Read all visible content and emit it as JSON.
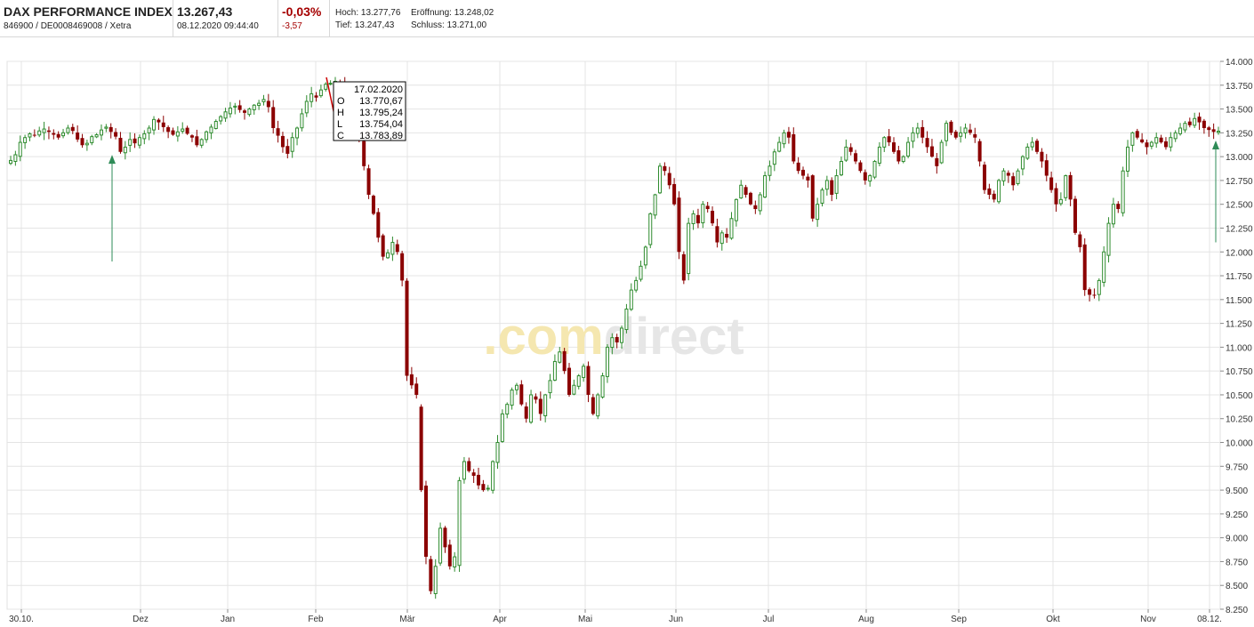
{
  "header": {
    "name": "DAX PERFORMANCE INDEX",
    "identifiers": "846900 / DE0008469008 / Xetra",
    "price": "13.267,43",
    "datetime": "08.12.2020 09:44:40",
    "change_pct": "-0,03%",
    "change_abs": "-3,57",
    "high_label": "Hoch:",
    "high_value": "13.277,76",
    "open_label": "Eröffnung:",
    "open_value": "13.248,02",
    "low_label": "Tief:",
    "low_value": "13.247,43",
    "close_label": "Schluss:",
    "close_value": "13.271,00"
  },
  "watermark": {
    "dot": ".",
    "com": "com",
    "direct": "direct"
  },
  "tooltip": {
    "date": "17.02.2020",
    "rows": [
      {
        "label": "O",
        "value": "13.770,67"
      },
      {
        "label": "H",
        "value": "13.795,24"
      },
      {
        "label": "L",
        "value": "13.754,04"
      },
      {
        "label": "C",
        "value": "13.783,89"
      }
    ]
  },
  "colors": {
    "up": "#2e8b2e",
    "down": "#8b0000",
    "grid": "#e4e4e4",
    "arrow": "#2e8b57"
  },
  "chart_data": {
    "type": "candlestick",
    "title": "DAX PERFORMANCE INDEX",
    "ylim": [
      8250,
      14000
    ],
    "y_ticks": [
      "8.250",
      "8.500",
      "8.750",
      "9.000",
      "9.250",
      "9.500",
      "9.750",
      "10.000",
      "10.250",
      "10.500",
      "10.750",
      "11.000",
      "11.250",
      "11.500",
      "11.750",
      "12.000",
      "12.250",
      "12.500",
      "12.750",
      "13.000",
      "13.250",
      "13.500",
      "13.750",
      "14.000"
    ],
    "x_ticks": [
      "30.10.",
      "Dez",
      "Jan",
      "Feb",
      "Mär",
      "Apr",
      "Mai",
      "Jun",
      "Jul",
      "Aug",
      "Sep",
      "Okt",
      "Nov",
      "08.12."
    ],
    "close": [
      12960,
      13020,
      13150,
      13200,
      13240,
      13225,
      13270,
      13290,
      13260,
      13230,
      13200,
      13250,
      13300,
      13270,
      13180,
      13120,
      13140,
      13210,
      13230,
      13280,
      13310,
      13260,
      13210,
      13050,
      13100,
      13180,
      13140,
      13200,
      13240,
      13300,
      13390,
      13360,
      13310,
      13260,
      13230,
      13260,
      13290,
      13240,
      13200,
      13120,
      13180,
      13260,
      13310,
      13370,
      13420,
      13470,
      13510,
      13530,
      13490,
      13460,
      13500,
      13540,
      13560,
      13600,
      13520,
      13300,
      13220,
      13100,
      13030,
      13200,
      13300,
      13450,
      13580,
      13660,
      13620,
      13700,
      13760,
      13770,
      13790,
      13784,
      13680,
      13610,
      13500,
      13200,
      12900,
      12600,
      12400,
      12150,
      11950,
      11990,
      12100,
      12000,
      11700,
      10700,
      10600,
      10500,
      9500,
      8800,
      8440,
      8700,
      9100,
      8900,
      8700,
      8800,
      9600,
      9800,
      9700,
      9650,
      9550,
      9500,
      9520,
      9800,
      10000,
      10300,
      10400,
      10550,
      10600,
      10400,
      10250,
      10500,
      10450,
      10300,
      10500,
      10650,
      10850,
      10950,
      10750,
      10500,
      10600,
      10700,
      10800,
      10500,
      10300,
      10500,
      10700,
      11000,
      11100,
      11050,
      11200,
      11400,
      11600,
      11700,
      11850,
      12050,
      12400,
      12600,
      12900,
      12850,
      12700,
      12500,
      12000,
      11700,
      12300,
      12400,
      12300,
      12500,
      12450,
      12300,
      12100,
      12200,
      12150,
      12350,
      12550,
      12700,
      12600,
      12500,
      12450,
      12600,
      12800,
      12900,
      13050,
      13150,
      13250,
      13200,
      12950,
      12850,
      12800,
      12750,
      12350,
      12500,
      12650,
      12750,
      12600,
      12800,
      12950,
      13100,
      13050,
      12950,
      12850,
      12750,
      12800,
      12950,
      13100,
      13200,
      13150,
      13050,
      12950,
      13000,
      13150,
      13250,
      13300,
      13200,
      13100,
      13000,
      12900,
      13150,
      13350,
      13250,
      13200,
      13250,
      13300,
      13250,
      13200,
      12950,
      12650,
      12600,
      12550,
      12750,
      12850,
      12800,
      12700,
      12850,
      13000,
      13100,
      13150,
      13050,
      12950,
      12800,
      12650,
      12500,
      12550,
      12800,
      12550,
      12200,
      12050,
      11600,
      11550,
      11550,
      11700,
      12000,
      12300,
      12500,
      12450,
      12850,
      13100,
      13250,
      13200,
      13150,
      13100,
      13150,
      13200,
      13150,
      13100,
      13200,
      13250,
      13300,
      13350,
      13330,
      13400,
      13360,
      13300,
      13280,
      13260,
      13267
    ]
  }
}
